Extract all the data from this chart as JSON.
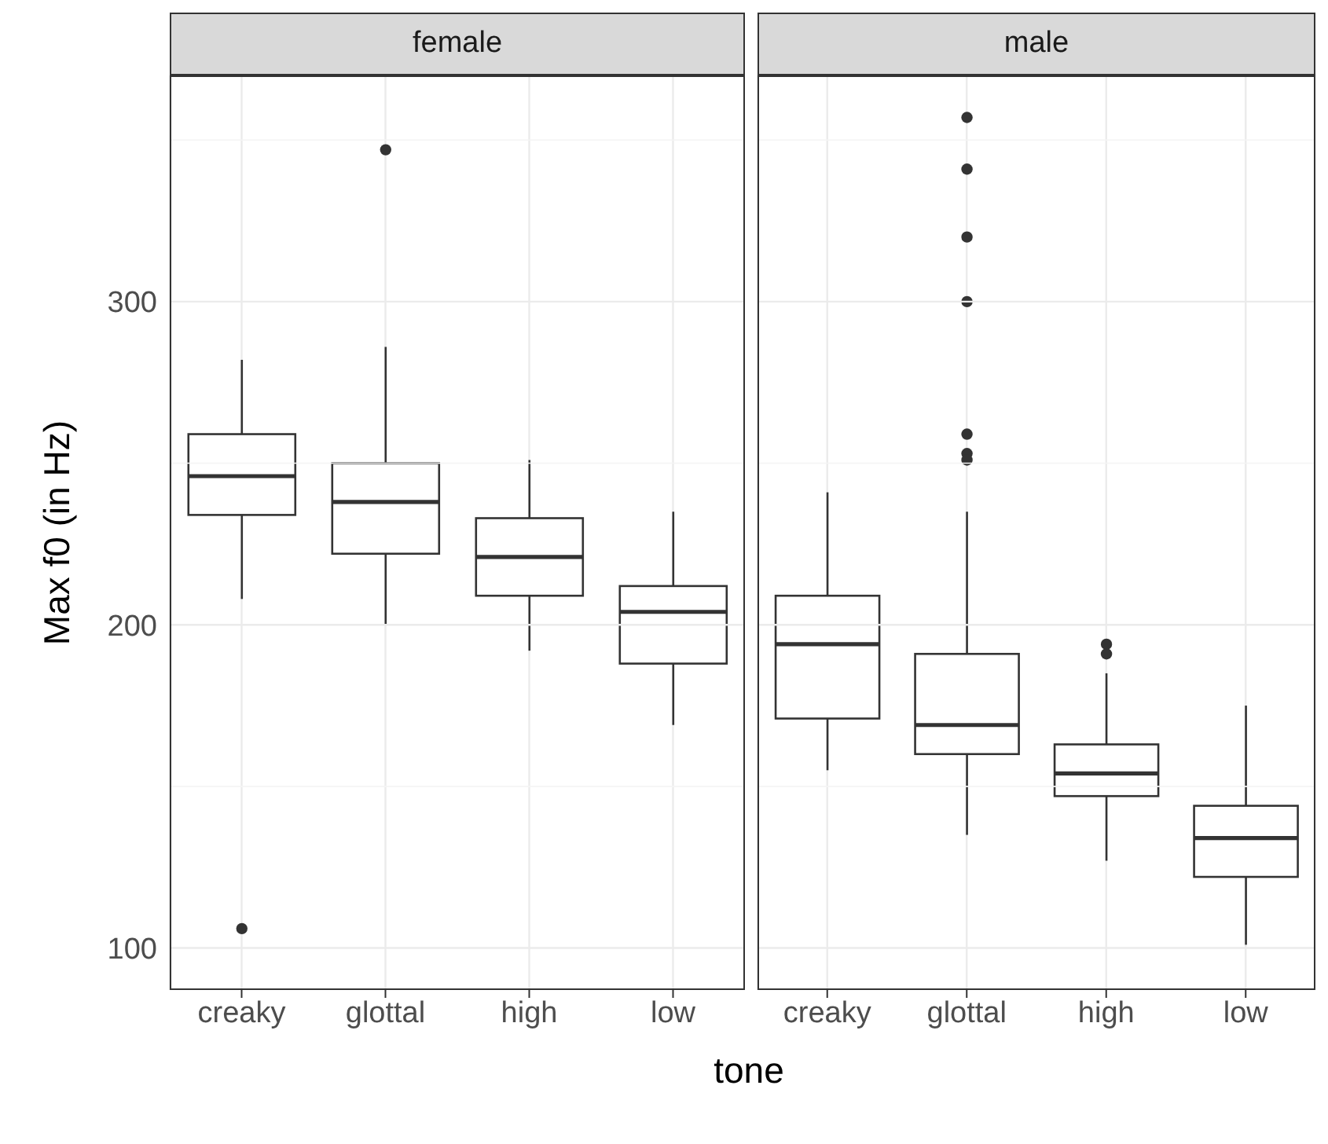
{
  "chart_data": [
    {
      "type": "box",
      "title": "female",
      "ylabel": "Max f0 (in Hz)",
      "xlabel": "tone",
      "categories": [
        "creaky",
        "glottal",
        "high",
        "low"
      ],
      "boxes": [
        {
          "low": 208,
          "q1": 234,
          "median": 246,
          "q3": 259,
          "high": 282,
          "outliers": [
            106
          ]
        },
        {
          "low": 200,
          "q1": 222,
          "median": 238,
          "q3": 250,
          "high": 286,
          "outliers": [
            347
          ]
        },
        {
          "low": 192,
          "q1": 209,
          "median": 221,
          "q3": 233,
          "high": 251
        },
        {
          "low": 169,
          "q1": 188,
          "median": 204,
          "q3": 212,
          "high": 235
        }
      ],
      "ylim": [
        87,
        370
      ],
      "yticks": [
        100,
        {
          "value": 150,
          "label": null
        },
        200,
        {
          "value": 250,
          "label": null
        },
        300,
        {
          "value": 350,
          "label": null
        }
      ],
      "grid": true
    },
    {
      "type": "box",
      "title": "male",
      "categories": [
        "creaky",
        "glottal",
        "high",
        "low"
      ],
      "boxes": [
        {
          "low": 155,
          "q1": 171,
          "median": 194,
          "q3": 209,
          "high": 241
        },
        {
          "low": 135,
          "q1": 160,
          "median": 169,
          "q3": 191,
          "high": 235,
          "outliers": [
            357,
            341,
            320,
            300,
            259,
            253,
            251
          ]
        },
        {
          "low": 127,
          "q1": 147,
          "median": 154,
          "q3": 163,
          "high": 185,
          "outliers": [
            194,
            191
          ]
        },
        {
          "low": 101,
          "q1": 122,
          "median": 134,
          "q3": 144,
          "high": 175
        }
      ],
      "ylim": [
        87,
        370
      ],
      "yticks": [
        100,
        {
          "value": 150,
          "label": null
        },
        200,
        {
          "value": 250,
          "label": null
        },
        300,
        {
          "value": 350,
          "label": null
        }
      ],
      "grid": true,
      "tick_labels": "x"
    }
  ]
}
